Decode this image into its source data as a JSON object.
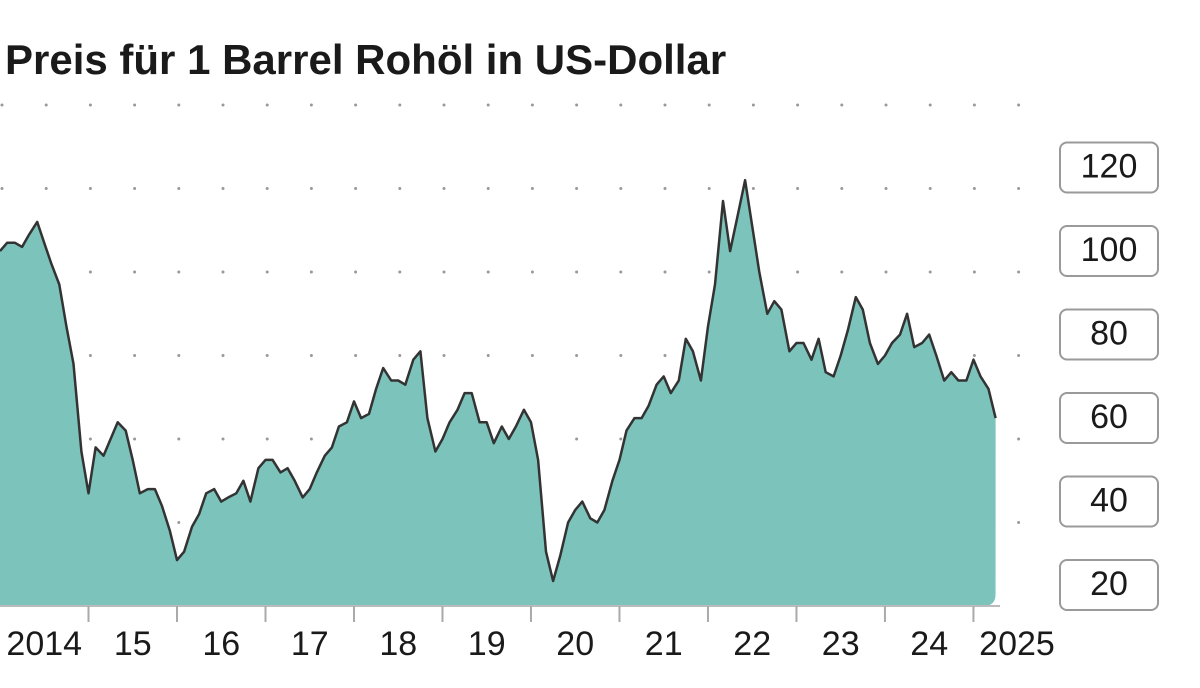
{
  "chart_data": {
    "type": "area",
    "title": "Preis für 1 Barrel Rohöl in US-Dollar",
    "color": "#7cc4bb",
    "line_color": "#333333",
    "xlim": [
      2014,
      2025.3
    ],
    "ylim": [
      20,
      140
    ],
    "yticks": [
      20,
      40,
      60,
      80,
      100,
      120
    ],
    "xticks": [
      2015,
      2016,
      2017,
      2018,
      2019,
      2020,
      2021,
      2022,
      2023,
      2024,
      2025
    ],
    "xlabels": [
      {
        "value": 2014.5,
        "label": "2014"
      },
      {
        "value": 2015.5,
        "label": "15"
      },
      {
        "value": 2016.5,
        "label": "16"
      },
      {
        "value": 2017.5,
        "label": "17"
      },
      {
        "value": 2018.5,
        "label": "18"
      },
      {
        "value": 2019.5,
        "label": "19"
      },
      {
        "value": 2020.5,
        "label": "20"
      },
      {
        "value": 2021.5,
        "label": "21"
      },
      {
        "value": 2022.5,
        "label": "22"
      },
      {
        "value": 2023.5,
        "label": "23"
      },
      {
        "value": 2024.5,
        "label": "24"
      },
      {
        "value": 2025.5,
        "label": "2025"
      }
    ],
    "grid": true,
    "x": [
      2014.0,
      2014.08,
      2014.17,
      2014.25,
      2014.33,
      2014.42,
      2014.5,
      2014.58,
      2014.67,
      2014.75,
      2014.83,
      2014.92,
      2015.0,
      2015.08,
      2015.17,
      2015.25,
      2015.33,
      2015.42,
      2015.5,
      2015.58,
      2015.67,
      2015.75,
      2015.83,
      2015.92,
      2016.0,
      2016.08,
      2016.17,
      2016.25,
      2016.33,
      2016.42,
      2016.5,
      2016.58,
      2016.67,
      2016.75,
      2016.83,
      2016.92,
      2017.0,
      2017.08,
      2017.17,
      2017.25,
      2017.33,
      2017.42,
      2017.5,
      2017.58,
      2017.67,
      2017.75,
      2017.83,
      2017.92,
      2018.0,
      2018.08,
      2018.17,
      2018.25,
      2018.33,
      2018.42,
      2018.5,
      2018.58,
      2018.67,
      2018.75,
      2018.83,
      2018.92,
      2019.0,
      2019.08,
      2019.17,
      2019.25,
      2019.33,
      2019.42,
      2019.5,
      2019.58,
      2019.67,
      2019.75,
      2019.83,
      2019.92,
      2020.0,
      2020.08,
      2020.17,
      2020.25,
      2020.33,
      2020.42,
      2020.5,
      2020.58,
      2020.67,
      2020.75,
      2020.83,
      2020.92,
      2021.0,
      2021.08,
      2021.17,
      2021.25,
      2021.33,
      2021.42,
      2021.5,
      2021.58,
      2021.67,
      2021.75,
      2021.83,
      2021.92,
      2022.0,
      2022.08,
      2022.17,
      2022.25,
      2022.33,
      2022.42,
      2022.5,
      2022.58,
      2022.67,
      2022.75,
      2022.83,
      2022.92,
      2023.0,
      2023.08,
      2023.17,
      2023.25,
      2023.33,
      2023.42,
      2023.5,
      2023.58,
      2023.67,
      2023.75,
      2023.83,
      2023.92,
      2024.0,
      2024.08,
      2024.17,
      2024.25,
      2024.33,
      2024.42,
      2024.5,
      2024.58,
      2024.67,
      2024.75,
      2024.83,
      2024.92,
      2025.0,
      2025.08,
      2025.17,
      2025.25
    ],
    "values": [
      105,
      107,
      107,
      106,
      109,
      112,
      107,
      102,
      97,
      87,
      78,
      57,
      47,
      58,
      56,
      60,
      64,
      62,
      55,
      47,
      48,
      48,
      44,
      38,
      31,
      33,
      39,
      42,
      47,
      48,
      45,
      46,
      47,
      50,
      45,
      53,
      55,
      55,
      52,
      53,
      50,
      46,
      48,
      52,
      56,
      58,
      63,
      64,
      69,
      65,
      66,
      72,
      77,
      74,
      74,
      73,
      79,
      81,
      65,
      57,
      60,
      64,
      67,
      71,
      71,
      64,
      64,
      59,
      63,
      60,
      63,
      67,
      64,
      55,
      33,
      26,
      32,
      40,
      43,
      45,
      41,
      40,
      43,
      50,
      55,
      62,
      65,
      65,
      68,
      73,
      75,
      71,
      74,
      84,
      81,
      74,
      87,
      97,
      117,
      105,
      113,
      122,
      111,
      100,
      90,
      93,
      91,
      81,
      83,
      83,
      79,
      84,
      76,
      75,
      80,
      86,
      94,
      91,
      83,
      78,
      80,
      83,
      85,
      90,
      82,
      83,
      85,
      80,
      74,
      76,
      74,
      74,
      79,
      75,
      72,
      65
    ]
  }
}
